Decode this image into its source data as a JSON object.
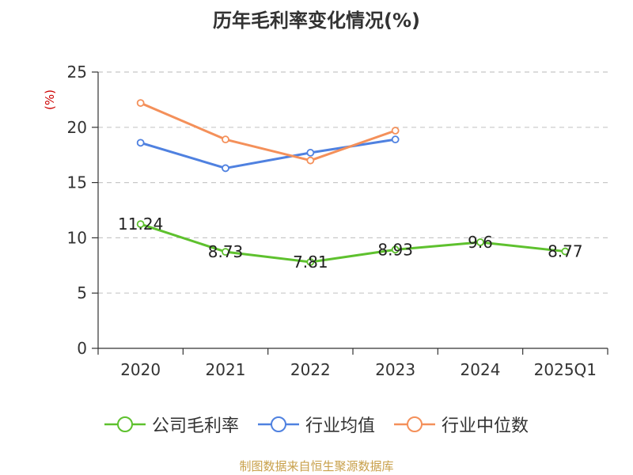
{
  "chart_data": {
    "type": "line",
    "title": "历年毛利率变化情况(%)",
    "ylabel": "(%)",
    "xlabel": "",
    "categories": [
      "2020",
      "2021",
      "2022",
      "2023",
      "2024",
      "2025Q1"
    ],
    "ylim": [
      0,
      25
    ],
    "yticks": [
      0,
      5,
      10,
      15,
      20,
      25
    ],
    "grid": "horizontal dashed",
    "legend_position": "bottom",
    "series": [
      {
        "name": "公司毛利率",
        "color": "#5ec12e",
        "values": [
          11.24,
          8.73,
          7.81,
          8.93,
          9.6,
          8.77
        ],
        "labels": [
          "11.24",
          "8.73",
          "7.81",
          "8.93",
          "9.6",
          "8.77"
        ]
      },
      {
        "name": "行业均值",
        "color": "#4f81e0",
        "values": [
          18.6,
          16.3,
          17.7,
          18.9,
          null,
          null
        ]
      },
      {
        "name": "行业中位数",
        "color": "#f4905a",
        "values": [
          22.2,
          18.9,
          17.0,
          19.7,
          null,
          null
        ]
      }
    ]
  },
  "source_note": "制图数据来自恒生聚源数据库"
}
